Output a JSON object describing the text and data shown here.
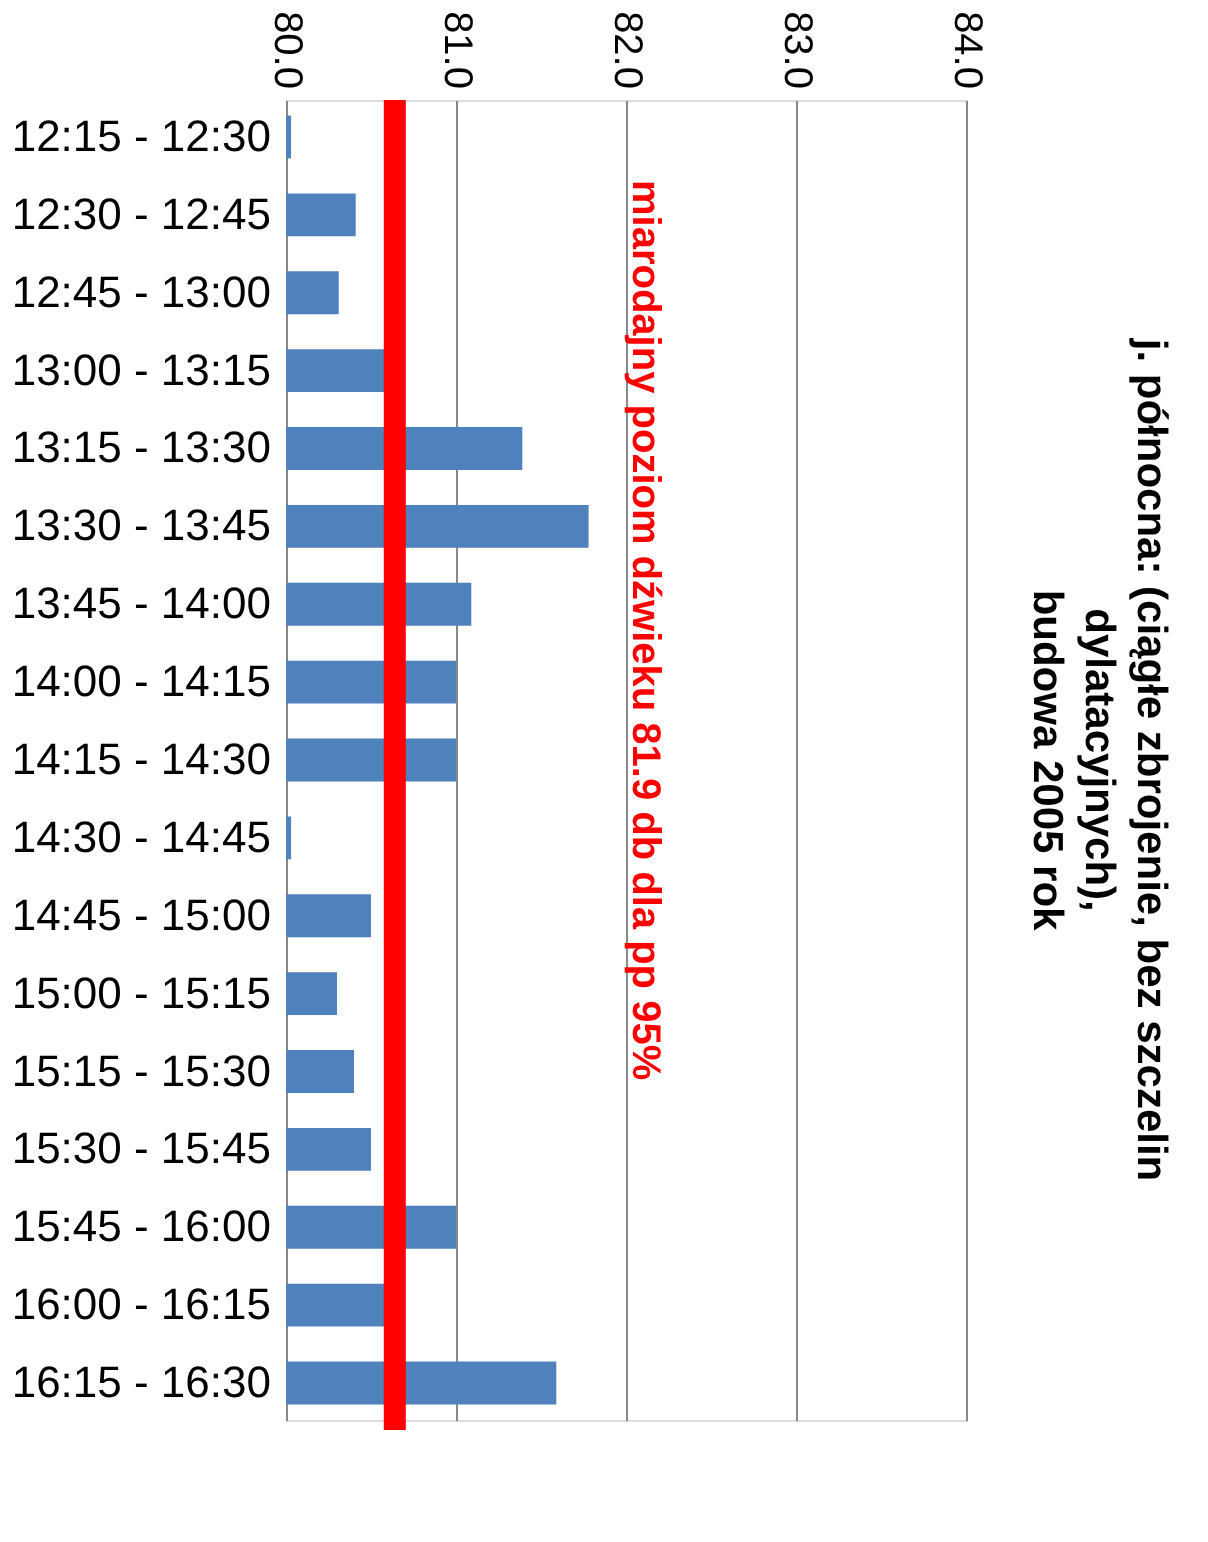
{
  "chart_data": {
    "type": "bar",
    "orientation": "horizontal",
    "title": [
      "j. północna: (ciągłe zbrojenie, bez szczelin",
      "dylatacyjnych),",
      "budowa 2005 rok"
    ],
    "categories": [
      "12:15 - 12:30",
      "12:30 - 12:45",
      "12:45 - 13:00",
      "13:00 - 13:15",
      "13:15 - 13:30",
      "13:30 - 13:45",
      "13:45 - 14:00",
      "14:00 - 14:15",
      "14:15 - 14:30",
      "14:30 - 14:45",
      "14:45 - 15:00",
      "15:00 - 15:15",
      "15:15 - 15:30",
      "15:30 - 15:45",
      "15:45 - 16:00",
      "16:00 - 16:15",
      "16:15 - 16:30"
    ],
    "values": [
      80.03,
      80.41,
      80.31,
      80.58,
      81.39,
      81.78,
      81.09,
      81.0,
      81.0,
      80.03,
      80.5,
      80.3,
      80.4,
      80.5,
      81.0,
      80.58,
      81.59
    ],
    "color": "#4f81bd",
    "xlim": [
      80,
      84
    ],
    "xticks": [
      {
        "value": 80,
        "label": "80.0"
      },
      {
        "value": 81,
        "label": "81.0"
      },
      {
        "value": 82,
        "label": "82.0"
      },
      {
        "value": 83,
        "label": "83.0"
      },
      {
        "value": 84,
        "label": "84.0"
      }
    ],
    "grid": "x",
    "ref_lines": [
      {
        "axis": "x",
        "value": 80.64,
        "label": "miarodajny poziom dźwieku 81.9 db dla pp 95%",
        "color": "#ff0000"
      }
    ]
  }
}
